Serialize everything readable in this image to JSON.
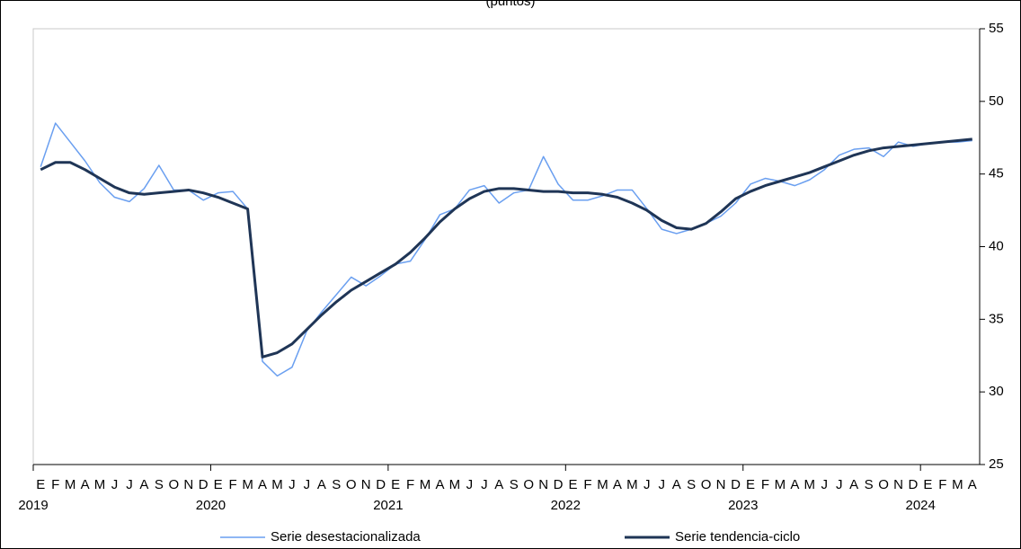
{
  "chart_data": {
    "type": "line",
    "title": "(puntos)",
    "categories": [
      "E",
      "F",
      "M",
      "A",
      "M",
      "J",
      "J",
      "A",
      "S",
      "O",
      "N",
      "D",
      "E",
      "F",
      "M",
      "A",
      "M",
      "J",
      "J",
      "A",
      "S",
      "O",
      "N",
      "D",
      "E",
      "F",
      "M",
      "A",
      "M",
      "J",
      "J",
      "A",
      "S",
      "O",
      "N",
      "D",
      "E",
      "F",
      "M",
      "A",
      "M",
      "J",
      "J",
      "A",
      "S",
      "O",
      "N",
      "D",
      "E",
      "F",
      "M",
      "A",
      "M",
      "J",
      "J",
      "A",
      "S",
      "O",
      "N",
      "D",
      "E",
      "F",
      "M",
      "A"
    ],
    "years": [
      "2019",
      null,
      null,
      null,
      null,
      null,
      null,
      null,
      null,
      null,
      null,
      null,
      "2020",
      null,
      null,
      null,
      null,
      null,
      null,
      null,
      null,
      null,
      null,
      null,
      "2021",
      null,
      null,
      null,
      null,
      null,
      null,
      null,
      null,
      null,
      null,
      null,
      "2022",
      null,
      null,
      null,
      null,
      null,
      null,
      null,
      null,
      null,
      null,
      null,
      "2023",
      null,
      null,
      null,
      null,
      null,
      null,
      null,
      null,
      null,
      null,
      null,
      "2024",
      null,
      null,
      null
    ],
    "series": [
      {
        "name": "Serie desestacionalizada",
        "color": "#6a9ff0",
        "width": 1.5,
        "values": [
          45.5,
          48.5,
          47.2,
          45.9,
          44.4,
          43.4,
          43.1,
          44.0,
          45.6,
          43.9,
          43.9,
          43.2,
          43.7,
          43.8,
          42.6,
          32.1,
          31.1,
          31.7,
          34.2,
          35.5,
          36.7,
          37.9,
          37.3,
          38.0,
          38.8,
          39.0,
          40.5,
          42.2,
          42.6,
          43.9,
          44.2,
          43.0,
          43.7,
          43.9,
          46.2,
          44.3,
          43.2,
          43.2,
          43.5,
          43.9,
          43.9,
          42.6,
          41.2,
          40.9,
          41.2,
          41.6,
          42.1,
          43.0,
          44.3,
          44.7,
          44.5,
          44.2,
          44.6,
          45.3,
          46.3,
          46.7,
          46.8,
          46.2,
          47.2,
          46.9,
          47.1,
          47.2,
          47.2,
          47.3
        ]
      },
      {
        "name": "Serie tendencia-ciclo",
        "color": "#1f3556",
        "width": 3,
        "values": [
          45.3,
          45.8,
          45.8,
          45.3,
          44.7,
          44.1,
          43.7,
          43.6,
          43.7,
          43.8,
          43.9,
          43.7,
          43.4,
          43.0,
          42.6,
          32.4,
          32.7,
          33.3,
          34.3,
          35.3,
          36.2,
          37.0,
          37.6,
          38.2,
          38.8,
          39.6,
          40.6,
          41.7,
          42.6,
          43.3,
          43.8,
          44.0,
          44.0,
          43.9,
          43.8,
          43.8,
          43.7,
          43.7,
          43.6,
          43.4,
          43.0,
          42.5,
          41.8,
          41.3,
          41.2,
          41.6,
          42.4,
          43.3,
          43.8,
          44.2,
          44.5,
          44.8,
          45.1,
          45.5,
          45.9,
          46.3,
          46.6,
          46.8,
          46.9,
          47.0,
          47.1,
          47.2,
          47.3,
          47.4
        ]
      }
    ],
    "ylim": [
      25,
      55
    ],
    "yticks": [
      25,
      30,
      35,
      40,
      45,
      50,
      55
    ]
  }
}
